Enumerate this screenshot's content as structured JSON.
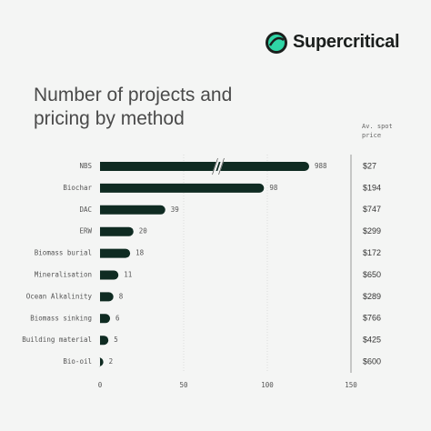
{
  "brand": "Supercritical",
  "chart_data": {
    "type": "hbar",
    "title": "Number of projects and pricing by method",
    "categories": [
      "NBS",
      "Biochar",
      "DAC",
      "ERW",
      "Biomass burial",
      "Mineralisation",
      "Ocean Alkalinity",
      "Biomass sinking",
      "Building material",
      "Bio-oil"
    ],
    "values": [
      988,
      98,
      39,
      20,
      18,
      11,
      8,
      6,
      5,
      2
    ],
    "color": "#0f2b22",
    "xlim": [
      0,
      150
    ],
    "xticks": [
      0,
      50,
      100,
      150
    ],
    "grid": true,
    "axis_break": true,
    "prices": {
      "name": "Av. spot price",
      "values": [
        27,
        194,
        747,
        299,
        172,
        650,
        289,
        766,
        425,
        600
      ],
      "value_labels": [
        "$27",
        "$194",
        "$747",
        "$299",
        "$172",
        "$650",
        "$289",
        "$766",
        "$425",
        "$600"
      ]
    }
  }
}
